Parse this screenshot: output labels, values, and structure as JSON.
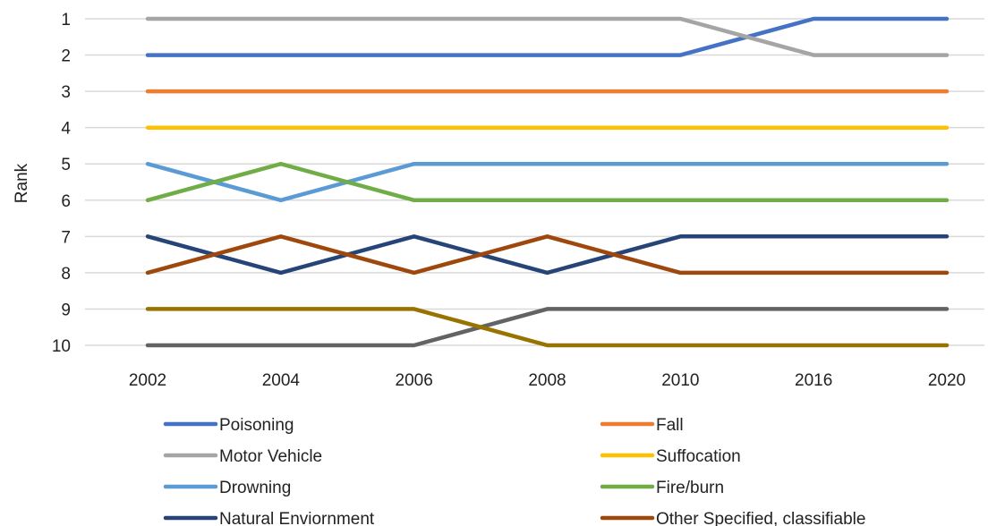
{
  "chart_data": {
    "type": "line",
    "title": "",
    "xlabel": "",
    "ylabel": "Rank",
    "x": [
      "2002",
      "2004",
      "2006",
      "2008",
      "2010",
      "2016",
      "2020"
    ],
    "y_ticks": [
      "1",
      "2",
      "3",
      "4",
      "5",
      "6",
      "7",
      "8",
      "9",
      "10"
    ],
    "ylim": [
      1,
      10
    ],
    "y_inverted": true,
    "grid": true,
    "legend_position": "bottom",
    "series": [
      {
        "name": "Poisoning",
        "color": "#4472c4",
        "values": [
          2,
          2,
          2,
          2,
          2,
          1,
          1
        ]
      },
      {
        "name": "Fall",
        "color": "#ed7d31",
        "values": [
          3,
          3,
          3,
          3,
          3,
          3,
          3
        ]
      },
      {
        "name": "Motor Vehicle",
        "color": "#a5a5a5",
        "values": [
          1,
          1,
          1,
          1,
          1,
          2,
          2
        ]
      },
      {
        "name": "Suffocation",
        "color": "#ffc000",
        "values": [
          4,
          4,
          4,
          4,
          4,
          4,
          4
        ]
      },
      {
        "name": "Drowning",
        "color": "#5b9bd5",
        "values": [
          5,
          6,
          5,
          5,
          5,
          5,
          5
        ]
      },
      {
        "name": "Fire/burn",
        "color": "#70ad47",
        "values": [
          6,
          5,
          6,
          6,
          6,
          6,
          6
        ]
      },
      {
        "name": "Natural Enviornment",
        "color": "#264478",
        "values": [
          7,
          8,
          7,
          8,
          7,
          7,
          7
        ]
      },
      {
        "name": "Other Specified, classifiable",
        "color": "#9e480e",
        "values": [
          8,
          7,
          8,
          7,
          8,
          8,
          8
        ]
      },
      {
        "name": "",
        "color": "#636363",
        "values": [
          10,
          10,
          10,
          9,
          9,
          9,
          9
        ]
      },
      {
        "name": "",
        "color": "#997300",
        "values": [
          9,
          9,
          9,
          10,
          10,
          10,
          10
        ]
      }
    ]
  }
}
